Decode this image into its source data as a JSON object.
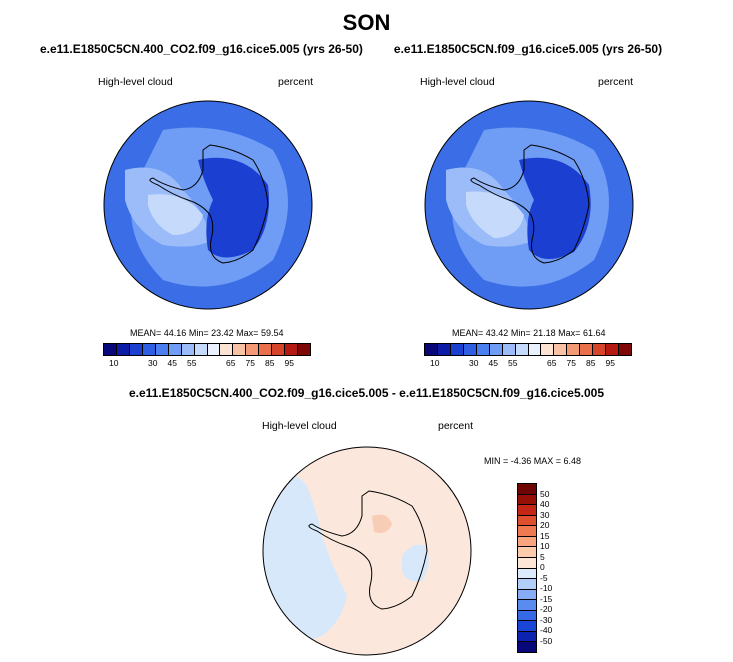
{
  "season": "SON",
  "left_panel": {
    "title": "e.e11.E1850C5CN.400_CO2.f09_g16.cice5.005 (yrs 26-50)",
    "variable": "High-level cloud",
    "units": "percent",
    "mean_label": "MEAN=",
    "mean": "44.16",
    "min_label": "Min=",
    "min": "23.42",
    "max_label": "Max=",
    "max": "59.54"
  },
  "right_panel": {
    "title": "e.e11.E1850C5CN.f09_g16.cice5.005 (yrs 26-50)",
    "variable": "High-level cloud",
    "units": "percent",
    "mean_label": "MEAN=",
    "mean": "43.42",
    "min_label": "Min=",
    "min": "21.18",
    "max_label": "Max=",
    "max": "61.64"
  },
  "diff_panel": {
    "title": "e.e11.E1850C5CN.400_CO2.f09_g16.cice5.005 - e.e11.E1850C5CN.f09_g16.cice5.005",
    "variable": "High-level cloud",
    "units": "percent",
    "minmax_text": "MIN =  -4.36 MAX =   6.48"
  },
  "colorbar_abs": {
    "colors": [
      "#08087a",
      "#0c1ca6",
      "#1b3fd0",
      "#2e5fe3",
      "#4a7ff0",
      "#6f9cf5",
      "#9bbcf8",
      "#c6dbfb",
      "#e8f1fd",
      "#fde3d3",
      "#f9c2a4",
      "#f39a74",
      "#e9704a",
      "#d6452a",
      "#b41a12",
      "#7e0808"
    ],
    "tick_labels": [
      "10",
      "",
      "30",
      "45",
      "55",
      "",
      "65",
      "75",
      "85",
      "95"
    ]
  },
  "colorbar_diff": {
    "colors": [
      "#08087a",
      "#0c23b0",
      "#1b45d6",
      "#3569e6",
      "#5a8cf0",
      "#86acf5",
      "#b3cdf9",
      "#ddeafc",
      "#fde6d6",
      "#fbcbac",
      "#f7a47f",
      "#ef7a52",
      "#e04f2e",
      "#c42716",
      "#961008",
      "#6e0606"
    ],
    "tick_labels": [
      "50",
      "40",
      "30",
      "20",
      "15",
      "10",
      "5",
      "0",
      "-5",
      "-10",
      "-15",
      "-20",
      "-30",
      "-40",
      "-50"
    ]
  },
  "map_colors": {
    "ocean_abs": "#3a6de6",
    "mid_abs": "#6f9cf5",
    "light_abs": "#9bbcf8",
    "pale_abs": "#c6dbfb",
    "dark_abs": "#1b3fd0",
    "diff_pos": "#fbe7dc",
    "diff_neg": "#d8e8fb",
    "diff_pos2": "#f7cdb5"
  }
}
